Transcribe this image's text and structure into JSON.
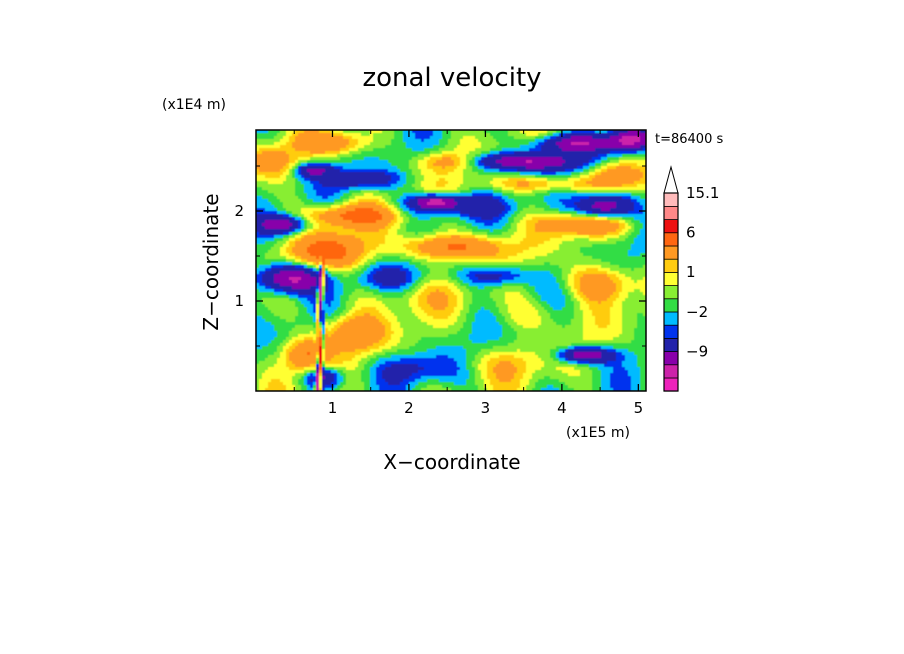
{
  "chart_data": {
    "type": "heatmap",
    "title": "zonal velocity",
    "xlabel": "X−coordinate",
    "ylabel": "Z−coordinate",
    "x_unit": "(x1E5 m)",
    "y_unit": "(x1E4 m)",
    "time_label": "t=86400 s",
    "xlim": [
      0.0,
      5.1
    ],
    "ylim": [
      0.0,
      2.9
    ],
    "x_ticks": [
      {
        "value": 1,
        "label": "1"
      },
      {
        "value": 2,
        "label": "2"
      },
      {
        "value": 3,
        "label": "3"
      },
      {
        "value": 4,
        "label": "4"
      },
      {
        "value": 5,
        "label": "5"
      }
    ],
    "y_ticks": [
      {
        "value": 1,
        "label": "1"
      },
      {
        "value": 2,
        "label": "2"
      }
    ],
    "colorbar": {
      "levels": [
        -15,
        -12,
        -9,
        -6,
        -3,
        -2,
        -1,
        0,
        1,
        2,
        3,
        6,
        9,
        12,
        15.1
      ],
      "labeled_levels": [
        {
          "value": 15.1,
          "label": "15.1"
        },
        {
          "value": 6,
          "label": "6"
        },
        {
          "value": 1,
          "label": "1"
        },
        {
          "value": -2,
          "label": "−2"
        },
        {
          "value": -9,
          "label": "−9"
        }
      ],
      "colors": [
        "#ee22bb",
        "#cc22aa",
        "#8800aa",
        "#2222aa",
        "#0033ee",
        "#00bbff",
        "#33dd44",
        "#88ee33",
        "#ffff33",
        "#ffcc11",
        "#ff9922",
        "#ff6611",
        "#ee1111",
        "#ff8888",
        "#ffbbbb"
      ],
      "extend_top": true
    }
  }
}
